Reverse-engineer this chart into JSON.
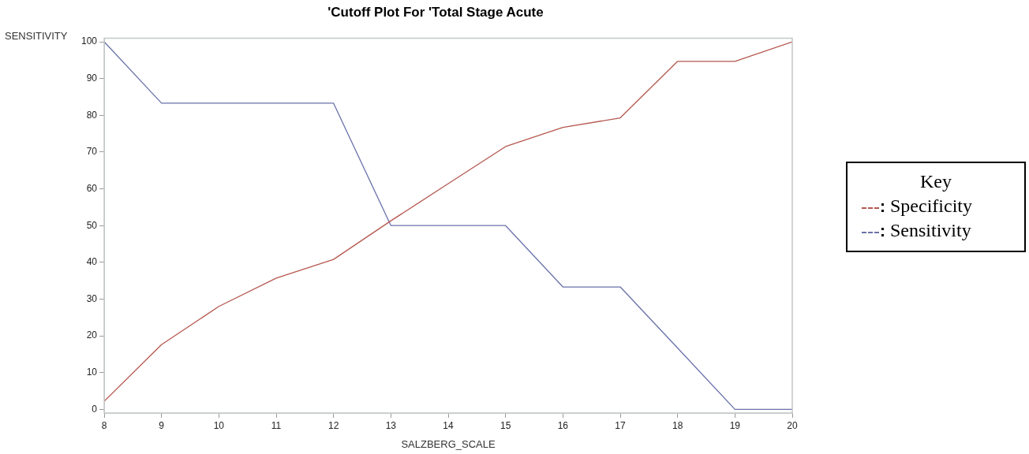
{
  "chart_data": {
    "type": "line",
    "title": "'Cutoff Plot For 'Total Stage Acute",
    "xlabel": "SALZBERG_SCALE",
    "ylabel": "SENSITIVITY",
    "legend_title": "Key",
    "legend": "right",
    "grid": false,
    "marker": "none",
    "line_style": "solid",
    "x": [
      8,
      9,
      10,
      11,
      12,
      13,
      14,
      15,
      16,
      17,
      18,
      19,
      20
    ],
    "xlim": [
      8,
      20
    ],
    "xticks": [
      8,
      9,
      10,
      11,
      12,
      13,
      14,
      15,
      16,
      17,
      18,
      19,
      20
    ],
    "ylim": [
      -1,
      101
    ],
    "yticks": [
      0,
      10,
      20,
      30,
      40,
      50,
      60,
      70,
      80,
      90,
      100
    ],
    "series": [
      {
        "name": "Specificity",
        "color": "#b5574f",
        "values": [
          2.2,
          17.6,
          28,
          35.7,
          40.8,
          51.3,
          61.4,
          71.5,
          76.7,
          79.3,
          94.7,
          94.7,
          100
        ]
      },
      {
        "name": "Sensitivity",
        "color": "#6a72aa",
        "values": [
          100,
          83.3,
          83.3,
          83.3,
          83.3,
          50,
          50,
          50,
          33.3,
          33.3,
          16.7,
          0,
          0
        ]
      }
    ]
  }
}
